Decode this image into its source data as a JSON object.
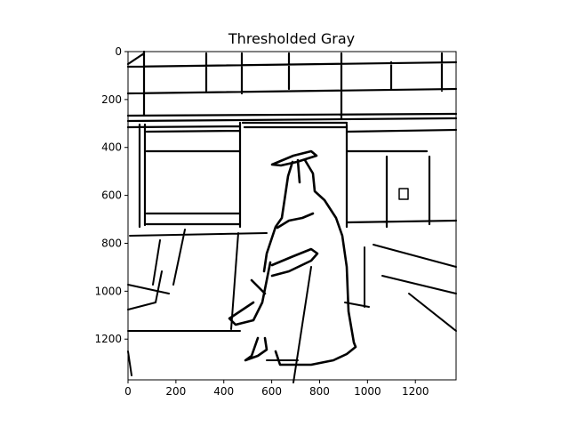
{
  "chart_data": {
    "type": "image",
    "title": "Thresholded Gray",
    "colormap": "gray",
    "xlim": [
      0,
      1370
    ],
    "ylim": [
      1370,
      0
    ],
    "xticks": [
      0,
      200,
      400,
      600,
      800,
      1000,
      1200
    ],
    "yticks": [
      0,
      200,
      400,
      600,
      800,
      1000,
      1200
    ],
    "xlabel": "",
    "ylabel": "",
    "grid": false
  },
  "colors": {
    "foreground": "#000000",
    "background": "#ffffff"
  }
}
